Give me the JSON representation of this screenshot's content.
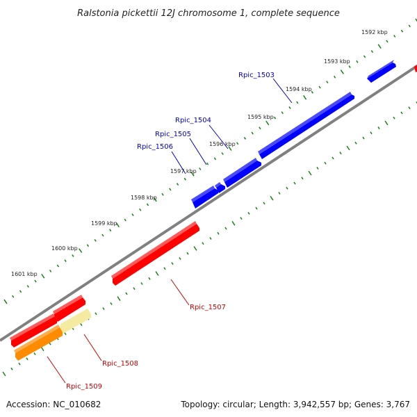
{
  "title": "Ralstonia pickettii 12J chromosome 1, complete sequence",
  "footer": {
    "accession": "Accession: NC_010682",
    "summary": "Topology: circular; Length: 3,942,557 bp; Genes: 3,767"
  },
  "colors": {
    "backbone": "#808080",
    "tick": "#1a7f1a",
    "forward_gene": "#0000ff",
    "reverse_gene": "#ff0000",
    "orange_gene": "#ff8c00",
    "pale_gene": "#f5eba0",
    "forward_label": "#0000cc",
    "reverse_label": "#cc0000"
  },
  "ticks": [
    {
      "label": "1592 kbp"
    },
    {
      "label": "1593 kbp"
    },
    {
      "label": "1594 kbp"
    },
    {
      "label": "1595 kbp"
    },
    {
      "label": "1596 kbp"
    },
    {
      "label": "1597 kbp"
    },
    {
      "label": "1598 kbp"
    },
    {
      "label": "1599 kbp"
    },
    {
      "label": "1600 kbp"
    },
    {
      "label": "1601 kbp"
    }
  ],
  "genes": [
    {
      "label": "Rpic_1503",
      "strand": "forward"
    },
    {
      "label": "Rpic_1504",
      "strand": "forward"
    },
    {
      "label": "Rpic_1505",
      "strand": "forward"
    },
    {
      "label": "Rpic_1506",
      "strand": "forward"
    },
    {
      "label": "Rpic_1507",
      "strand": "reverse"
    },
    {
      "label": "Rpic_1508",
      "strand": "reverse"
    },
    {
      "label": "Rpic_1509",
      "strand": "reverse"
    }
  ]
}
